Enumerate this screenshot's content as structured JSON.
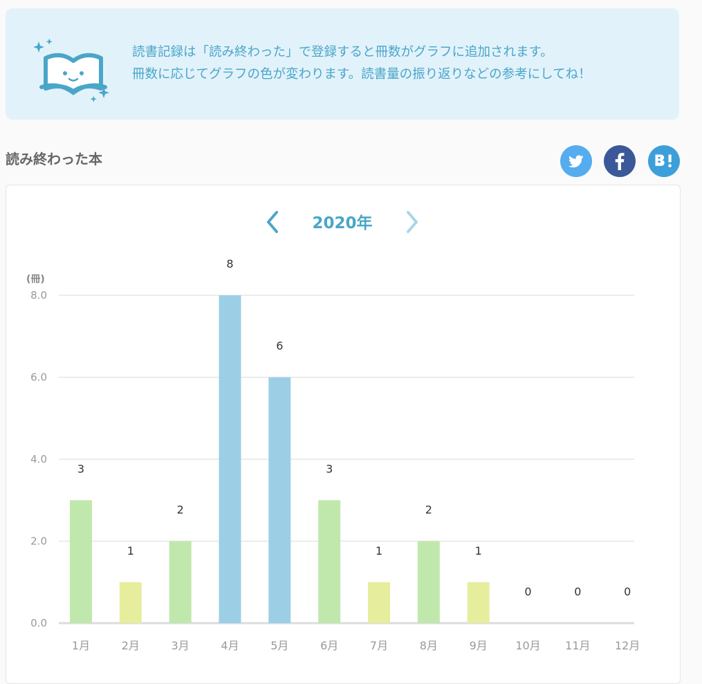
{
  "notice": {
    "line1": "読書記録は「読み終わった」で登録すると冊数がグラフに追加されます。",
    "line2": "冊数に応じてグラフの色が変わります。読書量の振り返りなどの参考にしてね！",
    "icon": "book-smile-icon"
  },
  "section": {
    "title": "読み終わった本"
  },
  "share": [
    {
      "name": "twitter",
      "icon": "twitter-icon",
      "color": "#55acee"
    },
    {
      "name": "facebook",
      "icon": "facebook-icon",
      "color": "#3b5998"
    },
    {
      "name": "hatena",
      "icon": "hatena-bookmark-icon",
      "color": "#3d9fd9"
    }
  ],
  "year_nav": {
    "year": "2020年",
    "prev_icon": "chevron-left-icon",
    "next_icon": "chevron-right-icon"
  },
  "colors": {
    "accent": "#4aa6c9",
    "low": "#e6ee9e",
    "mid": "#c0e8ad",
    "high": "#9ccfe6"
  },
  "chart_data": {
    "type": "bar",
    "ylabel": "(冊)",
    "categories": [
      "1月",
      "2月",
      "3月",
      "4月",
      "5月",
      "6月",
      "7月",
      "8月",
      "9月",
      "10月",
      "11月",
      "12月"
    ],
    "values": [
      3,
      1,
      2,
      8,
      6,
      3,
      1,
      2,
      1,
      0,
      0,
      0
    ],
    "value_labels": [
      "3",
      "1",
      "2",
      "8",
      "6",
      "3",
      "1",
      "2",
      "1",
      "0",
      "0",
      "0"
    ],
    "yticks": [
      "0.0",
      "2.0",
      "4.0",
      "6.0",
      "8.0"
    ],
    "ylim": [
      0,
      8
    ],
    "grid": true
  }
}
